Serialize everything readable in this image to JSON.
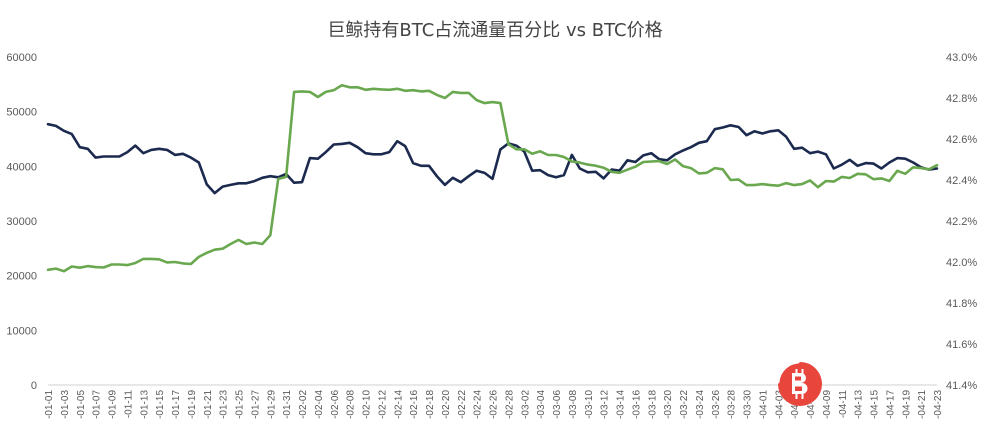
{
  "chart_data": {
    "type": "line",
    "title": "巨鲸持有BTC占流通量百分比 vs BTC价格",
    "x": [
      "-01-01",
      "-01-02",
      "-01-03",
      "-01-04",
      "-01-05",
      "-01-06",
      "-01-07",
      "-01-08",
      "-01-09",
      "-01-10",
      "-01-11",
      "-01-12",
      "-01-13",
      "-01-14",
      "-01-15",
      "-01-16",
      "-01-17",
      "-01-18",
      "-01-19",
      "-01-20",
      "-01-21",
      "-01-22",
      "-01-23",
      "-01-24",
      "-01-25",
      "-01-26",
      "-01-27",
      "-01-28",
      "-01-29",
      "-01-30",
      "-01-31",
      "-02-01",
      "-02-02",
      "-02-03",
      "-02-04",
      "-02-05",
      "-02-06",
      "-02-07",
      "-02-08",
      "-02-09",
      "-02-10",
      "-02-11",
      "-02-12",
      "-02-13",
      "-02-14",
      "-02-15",
      "-02-16",
      "-02-17",
      "-02-18",
      "-02-19",
      "-02-20",
      "-02-21",
      "-02-22",
      "-02-23",
      "-02-24",
      "-02-25",
      "-02-26",
      "-02-27",
      "-02-28",
      "-03-01",
      "-03-02",
      "-03-03",
      "-03-04",
      "-03-05",
      "-03-06",
      "-03-07",
      "-03-08",
      "-03-09",
      "-03-10",
      "-03-11",
      "-03-12",
      "-03-13",
      "-03-14",
      "-03-15",
      "-03-16",
      "-03-17",
      "-03-18",
      "-03-19",
      "-03-20",
      "-03-21",
      "-03-22",
      "-03-23",
      "-03-24",
      "-03-25",
      "-03-26",
      "-03-27",
      "-03-28",
      "-03-29",
      "-03-30",
      "-03-31",
      "-04-01",
      "-04-02",
      "-04-03",
      "-04-04",
      "-04-05",
      "-04-06",
      "-04-07",
      "-04-08",
      "-04-09",
      "-04-10",
      "-04-11",
      "-04-12",
      "-04-13",
      "-04-14",
      "-04-15",
      "-04-16",
      "-04-17",
      "-04-18",
      "-04-19",
      "-04-20",
      "-04-21",
      "-04-22",
      "-04-23"
    ],
    "x_tick_labels": [
      "-01-01",
      "-01-03",
      "-01-05",
      "-01-07",
      "-01-09",
      "-01-11",
      "-01-13",
      "-01-15",
      "-01-17",
      "-01-19",
      "-01-21",
      "-01-23",
      "-01-25",
      "-01-27",
      "-01-29",
      "-01-31",
      "-02-02",
      "-02-04",
      "-02-06",
      "-02-08",
      "-02-10",
      "-02-12",
      "-02-14",
      "-02-16",
      "-02-18",
      "-02-20",
      "-02-22",
      "-02-24",
      "-02-26",
      "-02-28",
      "-03-02",
      "-03-04",
      "-03-06",
      "-03-08",
      "-03-10",
      "-03-12",
      "-03-14",
      "-03-16",
      "-03-18",
      "-03-20",
      "-03-22",
      "-03-24",
      "-03-26",
      "-03-28",
      "-03-30",
      "-04-01",
      "-04-03",
      "-04-05",
      "-04-07",
      "-04-09",
      "-04-11",
      "-04-13",
      "-04-15",
      "-04-17",
      "-04-19",
      "-04-21",
      "-04-23"
    ],
    "series": [
      {
        "color": "#1b2a4e",
        "axis": "left",
        "values": [
          47700,
          47400,
          46500,
          45900,
          43500,
          43200,
          41600,
          41800,
          41800,
          41800,
          42600,
          43800,
          42400,
          43000,
          43200,
          43000,
          42100,
          42300,
          41600,
          40700,
          36700,
          35100,
          36300,
          36600,
          36900,
          36900,
          37300,
          37900,
          38200,
          38000,
          38600,
          37000,
          37100,
          41500,
          41400,
          42600,
          44000,
          44100,
          44300,
          43500,
          42400,
          42200,
          42200,
          42600,
          44600,
          43700,
          40600,
          40100,
          40100,
          38200,
          36600,
          37900,
          37100,
          38200,
          39200,
          38800,
          37700,
          43100,
          44200,
          43800,
          42700,
          39200,
          39300,
          38400,
          38000,
          38400,
          42100,
          39600,
          38900,
          39000,
          37800,
          39400,
          39200,
          41100,
          40800,
          42000,
          42400,
          41300,
          41100,
          42200,
          42900,
          43500,
          44300,
          44600,
          46800,
          47100,
          47500,
          47200,
          45700,
          46400,
          46000,
          46400,
          46600,
          45400,
          43200,
          43400,
          42400,
          42700,
          42200,
          39600,
          40300,
          41200,
          40100,
          40600,
          40500,
          39600,
          40700,
          41500,
          41400,
          40700,
          39800,
          39400,
          39600
        ]
      },
      {
        "color": "#6aa84f",
        "axis": "right",
        "values": [
          41.962,
          41.968,
          41.955,
          41.978,
          41.972,
          41.98,
          41.975,
          41.973,
          41.988,
          41.988,
          41.985,
          41.995,
          42.015,
          42.015,
          42.013,
          41.998,
          42.0,
          41.993,
          41.99,
          42.025,
          42.045,
          42.06,
          42.065,
          42.088,
          42.108,
          42.088,
          42.095,
          42.088,
          42.13,
          42.405,
          42.415,
          42.83,
          42.832,
          42.83,
          42.805,
          42.83,
          42.838,
          42.862,
          42.852,
          42.852,
          42.84,
          42.845,
          42.842,
          42.84,
          42.845,
          42.835,
          42.838,
          42.832,
          42.835,
          42.815,
          42.8,
          42.83,
          42.825,
          42.825,
          42.79,
          42.775,
          42.78,
          42.775,
          42.575,
          42.55,
          42.55,
          42.528,
          42.54,
          42.522,
          42.522,
          42.512,
          42.49,
          42.485,
          42.475,
          42.47,
          42.46,
          42.44,
          42.435,
          42.45,
          42.465,
          42.488,
          42.49,
          42.492,
          42.478,
          42.5,
          42.468,
          42.458,
          42.432,
          42.435,
          42.458,
          42.452,
          42.4,
          42.402,
          42.375,
          42.375,
          42.38,
          42.375,
          42.372,
          42.385,
          42.375,
          42.38,
          42.398,
          42.365,
          42.395,
          42.392,
          42.415,
          42.41,
          42.43,
          42.428,
          42.404,
          42.408,
          42.395,
          42.445,
          42.43,
          42.462,
          42.458,
          42.452,
          42.472
        ]
      }
    ],
    "y_left": {
      "min": 0,
      "max": 60000,
      "ticks": [
        "0",
        "10000",
        "20000",
        "30000",
        "40000",
        "50000",
        "60000"
      ]
    },
    "y_right": {
      "min": 41.4,
      "max": 43.0,
      "ticks": [
        "41.4%",
        "41.6%",
        "41.8%",
        "42.0%",
        "42.2%",
        "42.4%",
        "42.6%",
        "42.8%",
        "43.0%"
      ]
    },
    "grid": false,
    "legend": "none"
  },
  "colors": {
    "btc_badge": "#e8453c",
    "axis_text": "#595959",
    "title_text": "#444444"
  },
  "icons": {
    "watermark": "bitcoin-logo-icon"
  }
}
